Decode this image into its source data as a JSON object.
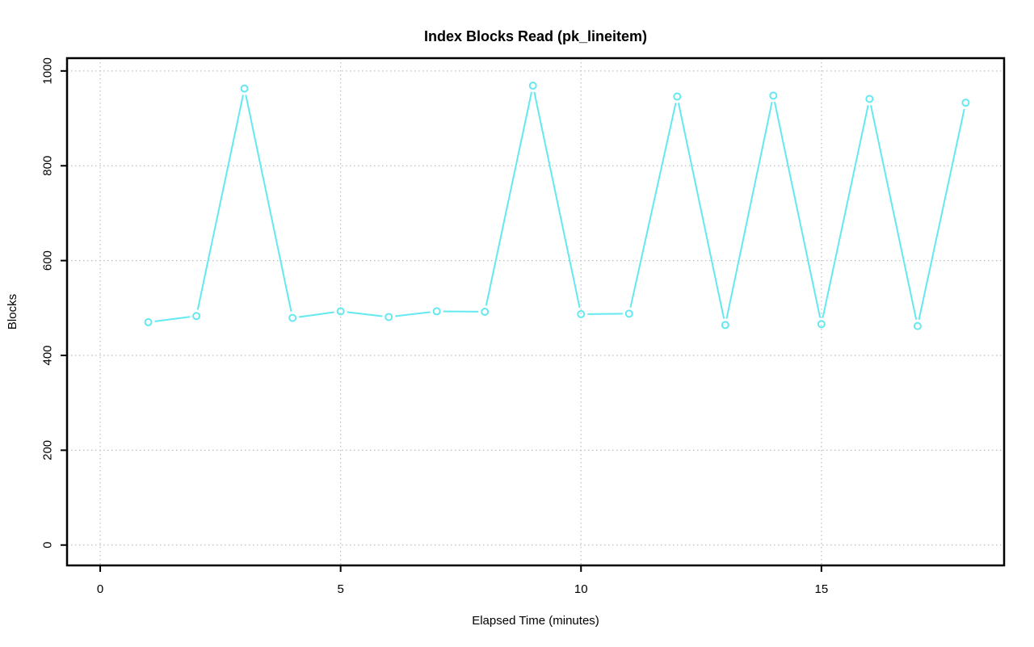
{
  "chart_data": {
    "type": "line",
    "title": "Index Blocks Read (pk_lineitem)",
    "xlabel": "Elapsed Time (minutes)",
    "ylabel": "Blocks",
    "x": [
      1,
      2,
      3,
      4,
      5,
      6,
      7,
      8,
      9,
      10,
      11,
      12,
      13,
      14,
      15,
      16,
      17,
      18
    ],
    "values": [
      470,
      483,
      963,
      479,
      493,
      481,
      493,
      492,
      969,
      487,
      488,
      946,
      464,
      948,
      466,
      941,
      462,
      933
    ],
    "x_ticks": [
      0,
      5,
      10,
      15
    ],
    "y_ticks": [
      0,
      200,
      400,
      600,
      800,
      1000
    ],
    "xlim": [
      -0.69,
      18.8
    ],
    "ylim": [
      -43,
      1027
    ],
    "grid": "dotted",
    "legend": "none",
    "marker": "open-circle",
    "colors": {
      "series": "#63e9ef",
      "grid": "#bebebe",
      "axis": "#000000",
      "background": "#ffffff"
    }
  }
}
